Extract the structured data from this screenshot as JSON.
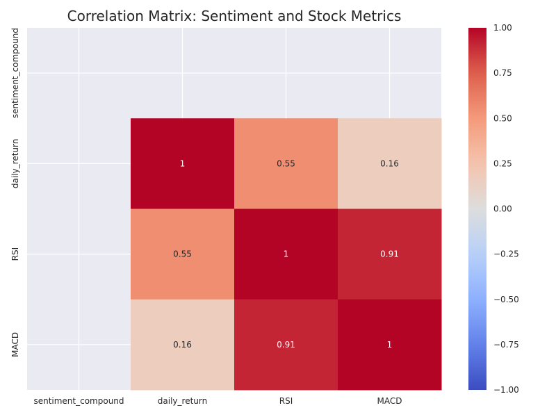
{
  "chart_data": {
    "type": "heatmap",
    "title": "Correlation Matrix: Sentiment and Stock Metrics",
    "xlabel": "",
    "ylabel": "",
    "x_categories": [
      "sentiment_compound",
      "daily_return",
      "RSI",
      "MACD"
    ],
    "y_categories": [
      "sentiment_compound",
      "daily_return",
      "RSI",
      "MACD"
    ],
    "values": [
      [
        null,
        null,
        null,
        null
      ],
      [
        null,
        1,
        0.55,
        0.16
      ],
      [
        null,
        0.55,
        1,
        0.91
      ],
      [
        null,
        0.16,
        0.91,
        1
      ]
    ],
    "cell_labels": [
      [
        null,
        null,
        null,
        null
      ],
      [
        null,
        "1",
        "0.55",
        "0.16"
      ],
      [
        null,
        "0.55",
        "1",
        "0.91"
      ],
      [
        null,
        "0.16",
        "0.91",
        "1"
      ]
    ],
    "colormap": "coolwarm",
    "vmin": -1,
    "vmax": 1,
    "colorbar_ticks": [
      1,
      0.75,
      0.5,
      0.25,
      0,
      -0.25,
      -0.5,
      -0.75,
      -1
    ],
    "colorbar_tick_labels": [
      "1.00",
      "0.75",
      "0.50",
      "0.25",
      "0.00",
      "−0.25",
      "−0.50",
      "−0.75",
      "−1.00"
    ],
    "background_color": "#eaeaf2",
    "grid": true
  }
}
